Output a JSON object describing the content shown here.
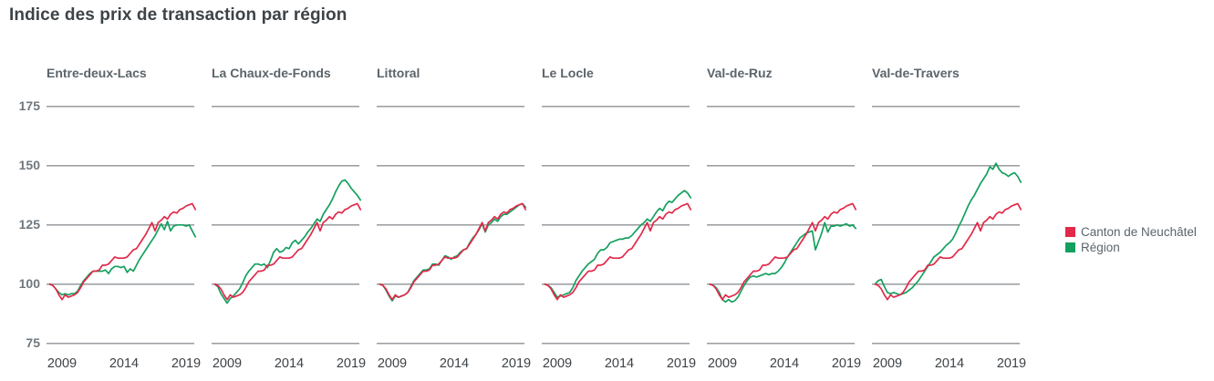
{
  "title": "Indice des prix de transaction par région",
  "legend": {
    "items": [
      {
        "label": "Canton de Neuchâtel",
        "color": "#e2294a"
      },
      {
        "label": "Région",
        "color": "#15a05f"
      }
    ]
  },
  "axes": {
    "y_tick_labels": [
      "175",
      "150",
      "125",
      "100",
      "75"
    ],
    "x_tick_labels": [
      "2009",
      "2014",
      "2019"
    ]
  },
  "colors": {
    "canton_line": "#e2294a",
    "region_line": "#15a05f",
    "gridline": "#8e9194",
    "title_text": "#3d4347",
    "panel_title_text": "#5b646b",
    "y_tick_text": "#6f777e",
    "x_tick_text": "#3d4347",
    "legend_text": "#5b646b",
    "background": "#ffffff"
  },
  "chart_data": {
    "type": "line",
    "layout": "small-multiples",
    "title": "Indice des prix de transaction par région",
    "x_start": 2008,
    "x_step": 0.25,
    "x_ticks": [
      2009,
      2014,
      2019
    ],
    "y_ticks": [
      75,
      100,
      125,
      150,
      175
    ],
    "ylim": [
      75,
      175
    ],
    "grid": "horizontal-only",
    "legend_position": "right",
    "series_legend": [
      {
        "name": "Canton de Neuchâtel",
        "color": "#e2294a"
      },
      {
        "name": "Région",
        "color": "#15a05f"
      }
    ],
    "canton_series": {
      "name": "Canton de Neuchâtel",
      "color": "#e2294a",
      "values": [
        100,
        99.5,
        98,
        95.5,
        93.5,
        95.5,
        94.5,
        95,
        95.5,
        96.5,
        98.5,
        101,
        102.5,
        104,
        105.5,
        105.5,
        106,
        108,
        108,
        108.5,
        110,
        111.5,
        111,
        111,
        111,
        111.5,
        113,
        114.5,
        115,
        117,
        119,
        121,
        123.5,
        126,
        122.5,
        126,
        127,
        128.5,
        127.5,
        129.5,
        130.5,
        130,
        131.5,
        132,
        133,
        133.5,
        134,
        131.5
      ]
    },
    "region_series_name": "Région",
    "region_color": "#15a05f",
    "panels": [
      {
        "region": "Entre-deux-Lacs",
        "region_values": [
          100,
          99.5,
          98,
          96.5,
          95.5,
          96,
          95.5,
          96,
          96,
          97,
          99.5,
          101.5,
          103,
          104.5,
          105.5,
          105.5,
          105.5,
          105.5,
          106,
          104.5,
          106.5,
          107.5,
          107.5,
          107,
          107.5,
          105,
          106.5,
          105.5,
          108,
          110.5,
          112.5,
          114.5,
          116.5,
          118.5,
          120.5,
          123,
          125.5,
          123,
          126.5,
          122.5,
          124.5,
          125,
          125,
          125,
          124.5,
          125,
          122.5,
          120
        ]
      },
      {
        "region": "La Chaux-de-Fonds",
        "region_values": [
          100,
          99,
          96,
          94,
          92,
          94,
          95,
          96.5,
          98,
          100.5,
          103.5,
          105.5,
          107,
          108.5,
          108.5,
          108,
          108.5,
          107,
          110,
          113.5,
          115,
          113.5,
          114,
          115.5,
          115,
          117.5,
          118.5,
          117,
          118.5,
          120,
          122,
          123.5,
          125.5,
          127.5,
          126.5,
          129.5,
          131.5,
          133.5,
          136,
          139,
          141.5,
          143.5,
          144,
          142.5,
          140.5,
          139,
          137.5,
          135.5
        ]
      },
      {
        "region": "Littoral",
        "region_values": [
          100,
          99.5,
          97.5,
          95,
          93,
          95,
          94.5,
          95,
          95.5,
          96.5,
          99,
          101.5,
          103,
          104.5,
          106,
          106,
          106.5,
          108.5,
          108.5,
          108,
          110,
          112,
          111.5,
          110.5,
          111.5,
          112,
          113.5,
          114.5,
          115,
          117.5,
          119.5,
          121,
          123,
          125.5,
          122,
          125,
          126,
          127.5,
          126.5,
          128.5,
          129.5,
          129.5,
          130.5,
          131.5,
          132.5,
          133.5,
          134,
          132.5
        ]
      },
      {
        "region": "Le Locle",
        "region_values": [
          100,
          99.5,
          98.5,
          96.5,
          94.5,
          95,
          95.5,
          96,
          96.5,
          98.5,
          101.5,
          103.5,
          105.5,
          107,
          108.5,
          109.5,
          110.5,
          113,
          114.5,
          114.5,
          115.5,
          117.5,
          118,
          118.5,
          119,
          119,
          119.5,
          119.5,
          120.5,
          122,
          123.5,
          125,
          126,
          127.5,
          126.5,
          128.5,
          130.5,
          132,
          131,
          133.5,
          135,
          134.5,
          136,
          137.5,
          138.5,
          139.5,
          138.5,
          136.5
        ]
      },
      {
        "region": "Val-de-Ruz",
        "region_values": [
          100,
          99.5,
          98.5,
          96.5,
          93.5,
          92.5,
          93.5,
          92.5,
          93,
          94.5,
          97,
          99.5,
          101.5,
          103,
          103.5,
          103,
          103.5,
          104,
          104.5,
          104,
          104.5,
          104.5,
          105.5,
          107,
          109,
          111.5,
          113.5,
          115.5,
          117.5,
          119.5,
          120.5,
          121.5,
          122,
          122.5,
          114.5,
          118,
          121.5,
          126,
          122,
          124.5,
          124.5,
          125,
          124.5,
          125,
          125.5,
          124.5,
          125,
          123.5
        ]
      },
      {
        "region": "Val-de-Travers",
        "region_values": [
          100,
          101.5,
          102,
          99,
          96.5,
          96,
          96.5,
          96,
          95.5,
          96,
          96.5,
          97.5,
          98.5,
          100,
          101.5,
          103.5,
          105.5,
          107.5,
          109.5,
          111.5,
          112.5,
          113.5,
          115,
          116.5,
          117.5,
          119,
          121.5,
          124.5,
          127,
          130,
          133,
          135.5,
          137.5,
          140,
          142.5,
          144.5,
          146.5,
          149.5,
          148.5,
          151,
          148.5,
          147,
          146.5,
          145.5,
          146.5,
          147,
          145.5,
          143
        ]
      }
    ]
  }
}
